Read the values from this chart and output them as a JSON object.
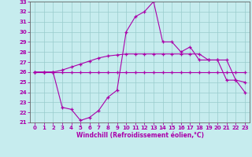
{
  "xlabel": "Windchill (Refroidissement éolien,°C)",
  "xlim": [
    -0.5,
    23.5
  ],
  "ylim": [
    21,
    33
  ],
  "xticks": [
    0,
    1,
    2,
    3,
    4,
    5,
    6,
    7,
    8,
    9,
    10,
    11,
    12,
    13,
    14,
    15,
    16,
    17,
    18,
    19,
    20,
    21,
    22,
    23
  ],
  "yticks": [
    21,
    22,
    23,
    24,
    25,
    26,
    27,
    28,
    29,
    30,
    31,
    32,
    33
  ],
  "bg_color": "#c6ecee",
  "line_color": "#aa00aa",
  "grid_color": "#99cccc",
  "line1_x": [
    0,
    1,
    2,
    3,
    4,
    5,
    6,
    7,
    8,
    9,
    10,
    11,
    12,
    13,
    14,
    15,
    16,
    17,
    18,
    19,
    20,
    21,
    22,
    23
  ],
  "line1_y": [
    26,
    26,
    26,
    26,
    26,
    26,
    26,
    26,
    26,
    26,
    26,
    26,
    26,
    26,
    26,
    26,
    26,
    26,
    26,
    26,
    26,
    26,
    26,
    26
  ],
  "line2_x": [
    0,
    1,
    2,
    3,
    4,
    5,
    6,
    7,
    8,
    9,
    10,
    11,
    12,
    13,
    14,
    15,
    16,
    17,
    18,
    19,
    20,
    21,
    22,
    23
  ],
  "line2_y": [
    26,
    26,
    26,
    26.2,
    26.5,
    26.8,
    27.1,
    27.4,
    27.6,
    27.7,
    27.8,
    27.8,
    27.8,
    27.8,
    27.8,
    27.8,
    27.8,
    27.8,
    27.8,
    27.2,
    27.2,
    27.2,
    25.2,
    24.0
  ],
  "line3_x": [
    0,
    1,
    2,
    3,
    4,
    5,
    6,
    7,
    8,
    9,
    10,
    11,
    12,
    13,
    14,
    15,
    16,
    17,
    18,
    19,
    20,
    21,
    22,
    23
  ],
  "line3_y": [
    26,
    26,
    26,
    22.5,
    22.3,
    21.2,
    21.5,
    22.2,
    23.5,
    24.2,
    30.0,
    31.5,
    32.0,
    33.0,
    29.0,
    29.0,
    28.0,
    28.5,
    27.2,
    27.2,
    27.2,
    25.2,
    25.2,
    25.0
  ]
}
